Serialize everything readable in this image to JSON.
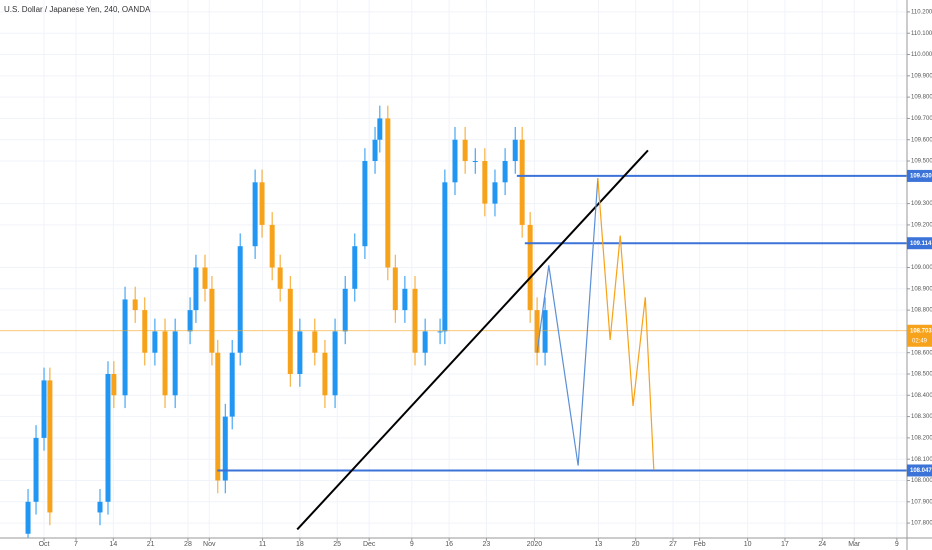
{
  "chart_data": {
    "type": "candlestick",
    "title": "U.S. Dollar / Japanese Yen, 240, OANDA",
    "up_color": "#2196f3",
    "down_color": "#f7a21b",
    "grid": true,
    "xlim": [
      -8.26,
      161.9
    ],
    "ylim": [
      107.73,
      110.256
    ],
    "xticks": [
      {
        "value": 0,
        "label": "Oct"
      },
      {
        "value": 6,
        "label": "7"
      },
      {
        "value": 13,
        "label": "14"
      },
      {
        "value": 20,
        "label": "21"
      },
      {
        "value": 27,
        "label": "28"
      },
      {
        "value": 31,
        "label": "Nov"
      },
      {
        "value": 41,
        "label": "11"
      },
      {
        "value": 48,
        "label": "18"
      },
      {
        "value": 55,
        "label": "25"
      },
      {
        "value": 61,
        "label": "Dec"
      },
      {
        "value": 69,
        "label": "9"
      },
      {
        "value": 76,
        "label": "16"
      },
      {
        "value": 83,
        "label": "23"
      },
      {
        "value": 92,
        "label": "2020"
      },
      {
        "value": 104,
        "label": "13"
      },
      {
        "value": 111,
        "label": "20"
      },
      {
        "value": 118,
        "label": "27"
      },
      {
        "value": 123,
        "label": "Feb"
      },
      {
        "value": 132,
        "label": "10"
      },
      {
        "value": 139,
        "label": "17"
      },
      {
        "value": 146,
        "label": "24"
      },
      {
        "value": 152,
        "label": "Mar"
      },
      {
        "value": 160,
        "label": "9"
      }
    ],
    "yticks": [
      {
        "value": 107.8,
        "label": "107.800"
      },
      {
        "value": 107.9,
        "label": "107.900"
      },
      {
        "value": 108.0,
        "label": "108.000"
      },
      {
        "value": 108.1,
        "label": "108.100"
      },
      {
        "value": 108.2,
        "label": "108.200"
      },
      {
        "value": 108.3,
        "label": "108.300"
      },
      {
        "value": 108.4,
        "label": "108.400"
      },
      {
        "value": 108.5,
        "label": "108.500"
      },
      {
        "value": 108.6,
        "label": "108.600"
      },
      {
        "value": 108.8,
        "label": "108.800"
      },
      {
        "value": 108.9,
        "label": "108.900"
      },
      {
        "value": 109.0,
        "label": "109.000"
      },
      {
        "value": 109.2,
        "label": "109.200"
      },
      {
        "value": 109.3,
        "label": "109.300"
      },
      {
        "value": 109.5,
        "label": "109.500"
      },
      {
        "value": 109.6,
        "label": "109.600"
      },
      {
        "value": 109.7,
        "label": "109.700"
      },
      {
        "value": 109.8,
        "label": "109.800"
      },
      {
        "value": 109.9,
        "label": "109.900"
      },
      {
        "value": 110.0,
        "label": "110.000"
      },
      {
        "value": 110.1,
        "label": "110.100"
      },
      {
        "value": 110.2,
        "label": "110.200"
      }
    ],
    "x": [
      -3,
      -1.5,
      0,
      1.1,
      10.5,
      12,
      13.1,
      15.2,
      17.1,
      18.9,
      20.8,
      22.7,
      24.6,
      27.4,
      28.5,
      30.2,
      31.5,
      32.6,
      34,
      35.3,
      36.8,
      39.6,
      40.9,
      42.8,
      44.3,
      46.2,
      48,
      50.8,
      52.7,
      54.6,
      56.5,
      58.3,
      60.2,
      62.1,
      63,
      64.5,
      65.9,
      67.7,
      69.6,
      71.5,
      74.3,
      75.2,
      77.1,
      79,
      80.9,
      82.7,
      84.6,
      86.5,
      88.4,
      89.7,
      91.2,
      92.5,
      94
    ],
    "open": [
      107.75,
      107.9,
      108.2,
      108.47,
      107.85,
      107.9,
      108.5,
      108.4,
      108.85,
      108.8,
      108.6,
      108.7,
      108.4,
      108.7,
      108.8,
      109.0,
      108.9,
      108.6,
      108.0,
      108.3,
      108.6,
      109.1,
      109.4,
      109.2,
      109.0,
      108.9,
      108.5,
      108.7,
      108.6,
      108.4,
      108.7,
      108.9,
      109.1,
      109.5,
      109.6,
      109.7,
      109.0,
      108.8,
      108.9,
      108.6,
      108.7,
      108.7,
      109.4,
      109.6,
      109.5,
      109.5,
      109.3,
      109.4,
      109.5,
      109.6,
      109.2,
      108.8,
      108.6
    ],
    "high": [
      107.96,
      108.26,
      108.53,
      108.53,
      107.96,
      108.56,
      108.56,
      108.91,
      108.91,
      108.86,
      108.76,
      108.76,
      108.76,
      108.86,
      109.06,
      109.06,
      108.96,
      108.66,
      108.36,
      108.66,
      109.16,
      109.46,
      109.46,
      109.26,
      109.06,
      108.96,
      108.76,
      108.76,
      108.66,
      108.76,
      108.96,
      109.16,
      109.56,
      109.66,
      109.76,
      109.76,
      109.06,
      108.96,
      108.96,
      108.76,
      108.76,
      109.46,
      109.66,
      109.66,
      109.56,
      109.56,
      109.46,
      109.56,
      109.66,
      109.66,
      109.26,
      108.86,
      108.86
    ],
    "low": [
      107.69,
      107.84,
      108.14,
      107.79,
      107.79,
      107.84,
      108.34,
      108.34,
      108.74,
      108.54,
      108.54,
      108.34,
      108.34,
      108.64,
      108.74,
      108.84,
      108.54,
      107.94,
      107.94,
      108.24,
      108.54,
      109.04,
      109.14,
      108.94,
      108.84,
      108.44,
      108.44,
      108.54,
      108.34,
      108.34,
      108.64,
      108.84,
      109.04,
      109.44,
      109.54,
      108.94,
      108.74,
      108.74,
      108.54,
      108.54,
      108.64,
      108.64,
      109.34,
      109.44,
      109.44,
      109.24,
      109.24,
      109.34,
      109.44,
      109.14,
      108.74,
      108.54,
      108.54
    ],
    "close": [
      107.9,
      108.2,
      108.47,
      107.85,
      107.9,
      108.5,
      108.4,
      108.85,
      108.8,
      108.6,
      108.7,
      108.4,
      108.7,
      108.8,
      109.0,
      108.9,
      108.6,
      108.0,
      108.3,
      108.6,
      109.1,
      109.4,
      109.2,
      109.0,
      108.9,
      108.5,
      108.7,
      108.6,
      108.4,
      108.7,
      108.9,
      109.1,
      109.5,
      109.6,
      109.7,
      109.0,
      108.8,
      108.9,
      108.6,
      108.7,
      108.7,
      109.4,
      109.6,
      109.5,
      109.5,
      109.3,
      109.4,
      109.5,
      109.6,
      109.2,
      108.8,
      108.6,
      108.8
    ],
    "levels": [
      {
        "value": 109.43,
        "label": "109.430",
        "start": 88.7,
        "color": "#3b73d9"
      },
      {
        "value": 109.114,
        "label": "109.114",
        "start": 90.2,
        "color": "#3b73d9"
      },
      {
        "value": 108.047,
        "label": "108.047",
        "start": 32.5,
        "color": "#3b73d9"
      }
    ],
    "current_price": {
      "value": 108.703,
      "label": "108.703",
      "countdown": "02:49",
      "color": "#f7a21b"
    },
    "drawings": [
      {
        "color": "#000000",
        "width": 2,
        "x": [
          47.5,
          113.3
        ],
        "values": [
          107.77,
          109.55
        ]
      },
      {
        "color": "#5b8fd6",
        "width": 1.2,
        "x": [
          92.5,
          94.7,
          100.2,
          103.9
        ],
        "values": [
          108.6,
          109.01,
          108.07,
          109.42
        ]
      },
      {
        "color": "#f7a21b",
        "width": 1.2,
        "x": [
          103.9,
          106.2,
          108.1,
          110.5,
          112.8,
          114.4
        ],
        "values": [
          109.42,
          108.66,
          109.15,
          108.35,
          108.86,
          108.05
        ]
      }
    ]
  }
}
